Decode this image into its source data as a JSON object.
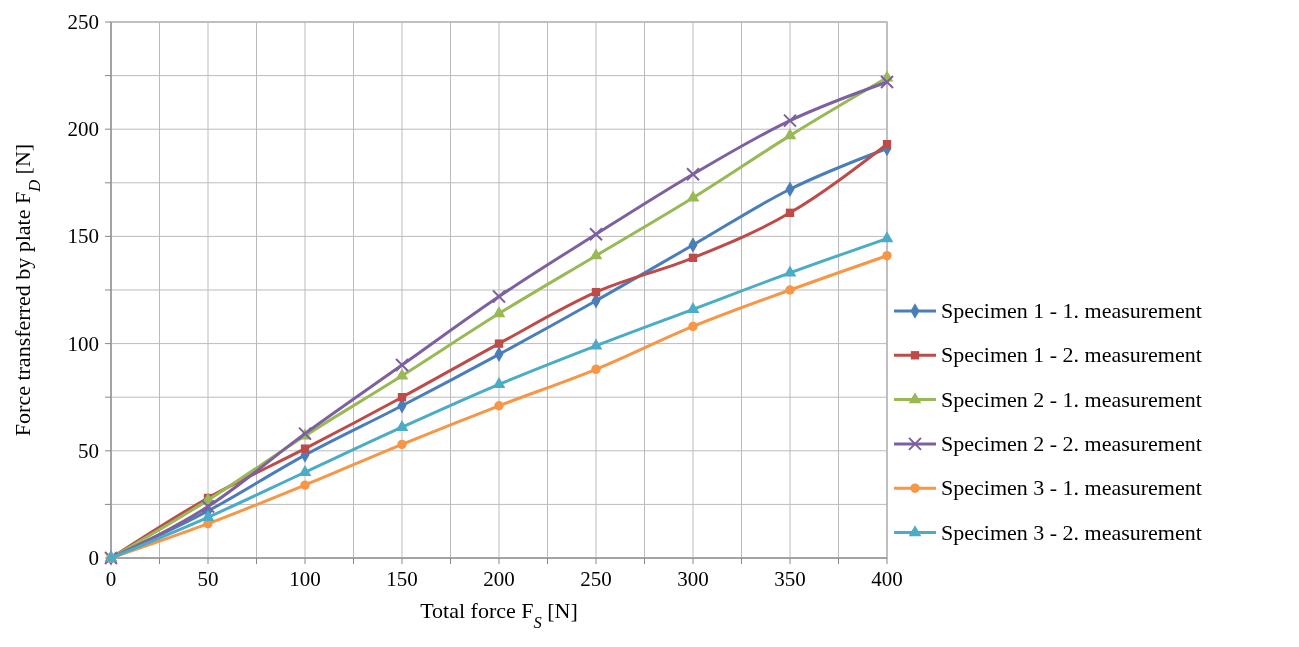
{
  "chart_data": {
    "type": "line",
    "xlabel": "Total force F$_{S}$ [N]",
    "ylabel": "Force transferred by plate F$_{D}$ [N]",
    "x": [
      0,
      50,
      100,
      150,
      200,
      250,
      300,
      350,
      400
    ],
    "xlim": [
      0,
      400
    ],
    "ylim": [
      0,
      250
    ],
    "xticks": [
      0,
      {
        "value": 25,
        "label": null
      },
      50,
      {
        "value": 75,
        "label": null
      },
      100,
      {
        "value": 125,
        "label": null
      },
      150,
      {
        "value": 175,
        "label": null
      },
      200,
      {
        "value": 225,
        "label": null
      },
      250,
      {
        "value": 275,
        "label": null
      },
      300,
      {
        "value": 325,
        "label": null
      },
      350,
      {
        "value": 375,
        "label": null
      },
      400
    ],
    "yticks": [
      0,
      {
        "value": 25,
        "label": null
      },
      50,
      {
        "value": 75,
        "label": null
      },
      100,
      {
        "value": 125,
        "label": null
      },
      150,
      {
        "value": 175,
        "label": null
      },
      200,
      {
        "value": 225,
        "label": null
      },
      250
    ],
    "grid": true,
    "legend": "right",
    "line_style": "solid",
    "series": [
      {
        "name": "Specimen 1 - 1. measurement",
        "color": "#4a7ebb",
        "marker": "diamond",
        "values": [
          0,
          22,
          48,
          71,
          95,
          120,
          146,
          172,
          191
        ]
      },
      {
        "name": "Specimen 1 - 2. measurement",
        "color": "#be4b48",
        "marker": "square",
        "values": [
          0,
          28,
          51,
          75,
          100,
          124,
          140,
          161,
          193
        ]
      },
      {
        "name": "Specimen 2 - 1. measurement",
        "color": "#98b954",
        "marker": "triangle",
        "values": [
          0,
          27,
          57,
          85,
          114,
          141,
          168,
          197,
          224
        ]
      },
      {
        "name": "Specimen 2 - 2. measurement",
        "color": "#7d60a0",
        "marker": "cross",
        "values": [
          0,
          24,
          58,
          90,
          122,
          151,
          179,
          204,
          222
        ]
      },
      {
        "name": "Specimen 3 - 1. measurement",
        "color": "#f79646",
        "marker": "circle",
        "values": [
          0,
          16,
          34,
          53,
          71,
          88,
          108,
          125,
          141
        ]
      },
      {
        "name": "Specimen 3 - 2. measurement",
        "color": "#4bacc6",
        "marker": "triangle",
        "values": [
          0,
          19,
          40,
          61,
          81,
          99,
          116,
          133,
          149
        ]
      }
    ]
  }
}
